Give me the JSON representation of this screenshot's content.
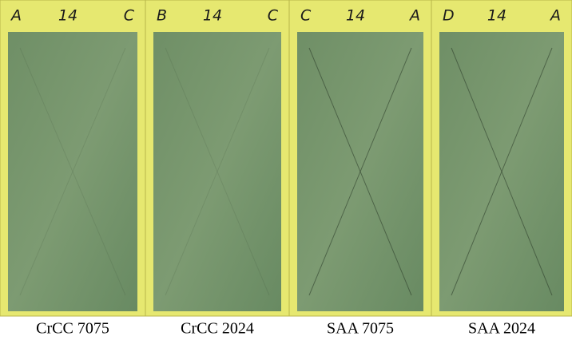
{
  "panels": [
    {
      "tape": [
        "A",
        "14",
        "C"
      ],
      "caption": "CrCC 7075"
    },
    {
      "tape": [
        "B",
        "14",
        "C"
      ],
      "caption": "CrCC 2024"
    },
    {
      "tape": [
        "C",
        "14",
        "A"
      ],
      "caption": "SAA 7075"
    },
    {
      "tape": [
        "D",
        "14",
        "A"
      ],
      "caption": "SAA 2024"
    }
  ]
}
